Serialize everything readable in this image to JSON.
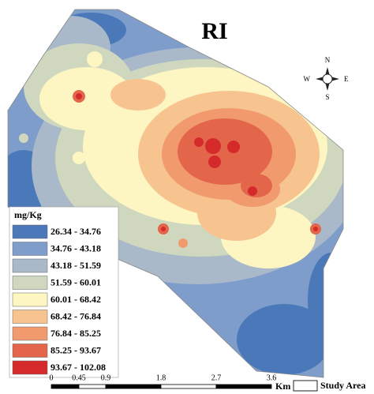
{
  "title": "RI",
  "compass": {
    "n": "N",
    "s": "S",
    "e": "E",
    "w": "W"
  },
  "legend": {
    "title": "mg/Kg",
    "items": [
      {
        "label": "26.34 - 34.76",
        "color": "#4a78b8"
      },
      {
        "label": "34.76 - 43.18",
        "color": "#7f9dca"
      },
      {
        "label": "43.18 - 51.59",
        "color": "#a9b9c9"
      },
      {
        "label": "51.59 - 60.01",
        "color": "#cfd8be"
      },
      {
        "label": "60.01 - 68.42",
        "color": "#fdf6c2"
      },
      {
        "label": "68.42 - 76.84",
        "color": "#f7c38f"
      },
      {
        "label": "76.84 - 85.25",
        "color": "#f09a6e"
      },
      {
        "label": "85.25 - 93.67",
        "color": "#e3664b"
      },
      {
        "label": "93.67 - 102.08",
        "color": "#d42a2a"
      }
    ]
  },
  "scale_bar": {
    "labels": [
      "0",
      "0.45",
      "0.9",
      "1.8",
      "2.7",
      "3.6"
    ],
    "unit": "Km"
  },
  "study_area": {
    "label": "Study Area"
  }
}
